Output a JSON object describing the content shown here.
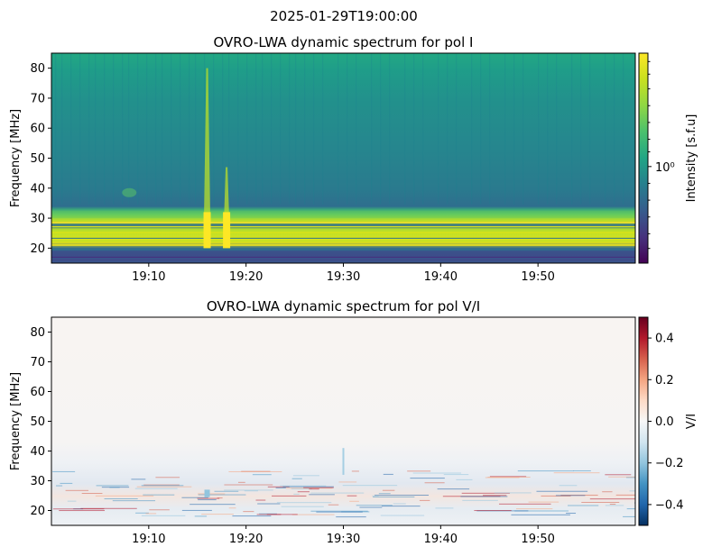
{
  "figure_title": "2025-01-29T19:00:00",
  "chart_data": [
    {
      "type": "heatmap",
      "title": "OVRO-LWA dynamic spectrum for pol I",
      "xlabel": "",
      "ylabel": "Frequency [MHz]",
      "x_range": [
        "19:00",
        "20:00"
      ],
      "ylim": [
        15,
        85
      ],
      "x_ticks": [
        "19:10",
        "19:20",
        "19:30",
        "19:40",
        "19:50"
      ],
      "y_ticks": [
        20,
        30,
        40,
        50,
        60,
        70,
        80
      ],
      "colormap": "viridis",
      "colorbar": {
        "label": "Intensity [s.f.u]",
        "scale": "log",
        "tick_labels": [
          "10⁰"
        ]
      },
      "features": [
        {
          "type": "bright band",
          "freq_range_MHz": [
            20,
            30
          ]
        },
        {
          "type": "burst",
          "time": "19:16",
          "freq_range_MHz": [
            20,
            80
          ]
        },
        {
          "type": "burst",
          "time": "19:18",
          "freq_range_MHz": [
            20,
            47
          ]
        }
      ]
    },
    {
      "type": "heatmap",
      "title": "OVRO-LWA dynamic spectrum for pol V/I",
      "xlabel": "",
      "ylabel": "Frequency [MHz]",
      "x_range": [
        "19:00",
        "20:00"
      ],
      "ylim": [
        15,
        85
      ],
      "x_ticks": [
        "19:10",
        "19:20",
        "19:30",
        "19:40",
        "19:50"
      ],
      "y_ticks": [
        20,
        30,
        40,
        50,
        60,
        70,
        80
      ],
      "colormap": "RdBu_r",
      "colorbar": {
        "label": "V/I",
        "range": [
          -0.5,
          0.5
        ],
        "tick_labels": [
          "0.4",
          "0.2",
          "0.0",
          "−0.2",
          "−0.4"
        ]
      }
    }
  ]
}
